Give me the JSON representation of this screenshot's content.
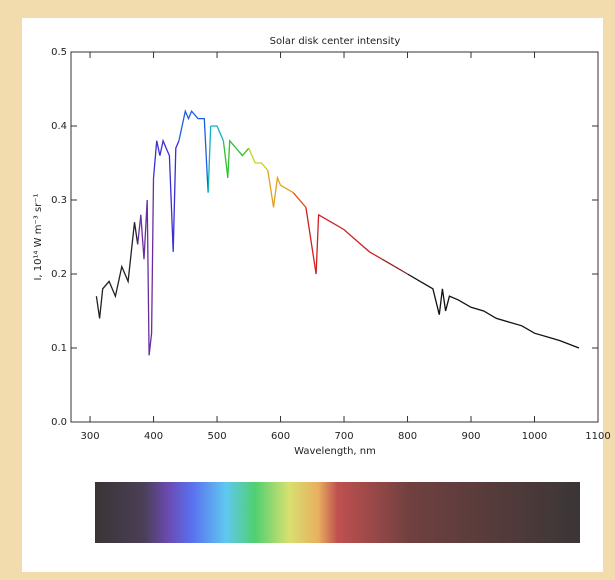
{
  "chart_data": {
    "type": "line",
    "title": "Solar disk center intensity",
    "x_label": "Wavelength, nm",
    "y_label": "I, 10¹⁴ W m⁻³ sr⁻¹",
    "xlim": [
      270,
      1100
    ],
    "xticks": [
      300,
      400,
      500,
      600,
      700,
      800,
      900,
      1000,
      1100
    ],
    "ylim": [
      0,
      0.5
    ],
    "yticks": [
      {
        "value": 0,
        "label": "0.0"
      },
      0.1,
      0.2,
      0.3,
      0.4,
      0.5
    ],
    "series": [
      {
        "color": "#222222",
        "x": [
          310,
          315,
          320,
          330,
          340,
          350,
          360,
          370,
          375
        ],
        "values": [
          0.17,
          0.14,
          0.18,
          0.19,
          0.17,
          0.21,
          0.19,
          0.27,
          0.24
        ]
      },
      {
        "color": "#6a2ca0",
        "x": [
          380,
          385,
          390,
          393,
          397,
          400
        ],
        "values": [
          0.28,
          0.22,
          0.3,
          0.09,
          0.12,
          0.33
        ]
      },
      {
        "color": "#3b2fd0",
        "x": [
          405,
          410,
          415,
          420,
          425,
          431,
          435,
          440
        ],
        "values": [
          0.38,
          0.36,
          0.38,
          0.37,
          0.36,
          0.23,
          0.37,
          0.38
        ]
      },
      {
        "color": "#1f5de0",
        "x": [
          445,
          450,
          455,
          460,
          470,
          480,
          486
        ],
        "values": [
          0.4,
          0.42,
          0.41,
          0.42,
          0.41,
          0.41,
          0.31
        ]
      },
      {
        "color": "#10b0c0",
        "x": [
          490,
          500,
          510
        ],
        "values": [
          0.4,
          0.4,
          0.38
        ]
      },
      {
        "color": "#30c030",
        "x": [
          517,
          520,
          530,
          540,
          550
        ],
        "values": [
          0.33,
          0.38,
          0.37,
          0.36,
          0.37
        ]
      },
      {
        "color": "#c8d020",
        "x": [
          560,
          570,
          580
        ],
        "values": [
          0.35,
          0.35,
          0.34
        ]
      },
      {
        "color": "#e0a020",
        "x": [
          589,
          595,
          600,
          620
        ],
        "values": [
          0.29,
          0.33,
          0.32,
          0.31
        ]
      },
      {
        "color": "#e05020",
        "x": [
          640
        ],
        "values": [
          0.29
        ]
      },
      {
        "color": "#d02020",
        "x": [
          656,
          660,
          680,
          700,
          720,
          740,
          760
        ],
        "values": [
          0.2,
          0.28,
          0.27,
          0.26,
          0.245,
          0.23,
          0.22
        ]
      },
      {
        "color": "#902020",
        "x": [
          780,
          800
        ],
        "values": [
          0.21,
          0.2
        ]
      },
      {
        "color": "#111111",
        "x": [
          820,
          840,
          850,
          855,
          860,
          866,
          880,
          900,
          920,
          940,
          960,
          980,
          1000,
          1020,
          1040,
          1070
        ],
        "values": [
          0.19,
          0.18,
          0.145,
          0.18,
          0.15,
          0.17,
          0.165,
          0.155,
          0.15,
          0.14,
          0.135,
          0.13,
          0.12,
          0.115,
          0.11,
          0.1
        ]
      }
    ]
  }
}
